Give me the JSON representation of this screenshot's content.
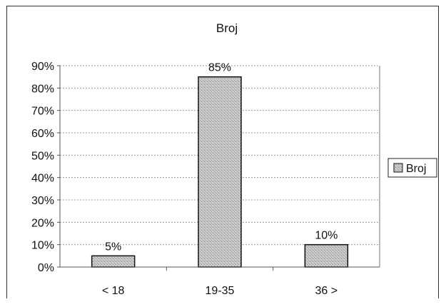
{
  "chart_data": {
    "type": "bar",
    "title": "Broj",
    "categories": [
      "< 18",
      "19-35",
      "36 >"
    ],
    "series": [
      {
        "name": "Broj",
        "values": [
          5,
          85,
          10
        ]
      }
    ],
    "data_labels": [
      "5%",
      "85%",
      "10%"
    ],
    "y_ticks": [
      "0%",
      "10%",
      "20%",
      "30%",
      "40%",
      "50%",
      "60%",
      "70%",
      "80%",
      "90%"
    ],
    "ylim": [
      0,
      90
    ],
    "y_unit": "percent",
    "grid": true,
    "legend": {
      "position": "right",
      "entries": [
        "Broj"
      ]
    },
    "colors": {
      "bar": "#bdbdbd",
      "bar_border": "#111111",
      "grid": "#9a9a9a",
      "axis": "#555555"
    }
  }
}
